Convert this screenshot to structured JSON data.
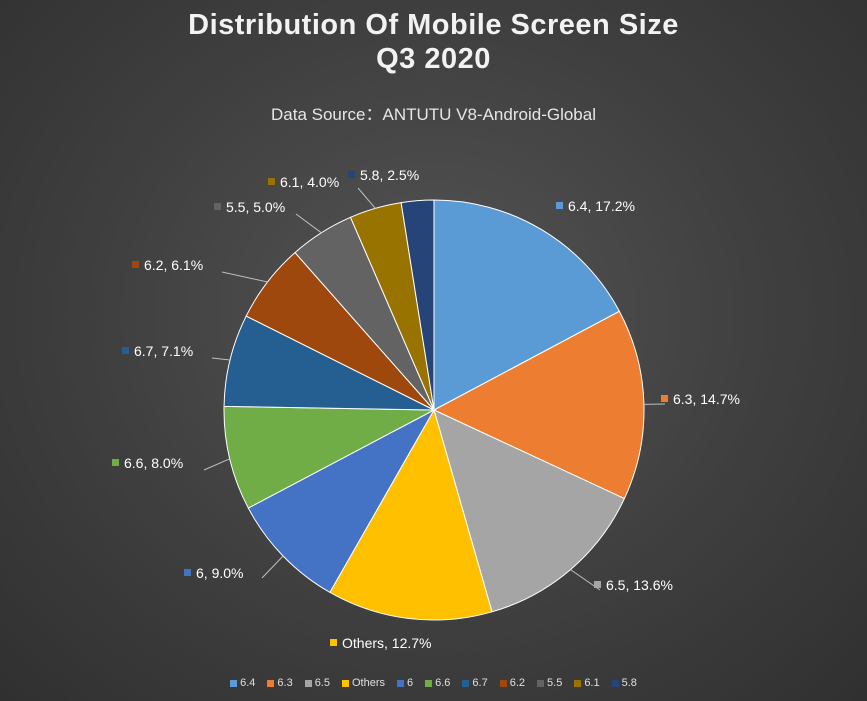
{
  "title_line1": "Distribution Of Mobile Screen Size",
  "title_line2": "Q3 2020",
  "subtitle": "Data Source：ANTUTU V8-Android-Global",
  "chart_data": {
    "type": "pie",
    "title": "Distribution Of Mobile Screen Size Q3 2020",
    "subtitle": "Data Source：ANTUTU V8-Android-Global",
    "legend_position": "bottom",
    "slices": [
      {
        "label": "6.4",
        "value": 17.2,
        "display": "6.4, 17.2%",
        "color": "#5b9bd5"
      },
      {
        "label": "6.3",
        "value": 14.7,
        "display": "6.3, 14.7%",
        "color": "#ed7d31"
      },
      {
        "label": "6.5",
        "value": 13.6,
        "display": "6.5, 13.6%",
        "color": "#a5a5a5"
      },
      {
        "label": "Others",
        "value": 12.7,
        "display": "Others, 12.7%",
        "color": "#ffc000"
      },
      {
        "label": "6",
        "value": 9.0,
        "display": "6, 9.0%",
        "color": "#4472c4"
      },
      {
        "label": "6.6",
        "value": 8.0,
        "display": "6.6, 8.0%",
        "color": "#70ad47"
      },
      {
        "label": "6.7",
        "value": 7.1,
        "display": "6.7, 7.1%",
        "color": "#255e91"
      },
      {
        "label": "6.2",
        "value": 6.1,
        "display": "6.2, 6.1%",
        "color": "#9e480e"
      },
      {
        "label": "5.5",
        "value": 5.0,
        "display": "5.5, 5.0%",
        "color": "#636363"
      },
      {
        "label": "6.1",
        "value": 4.0,
        "display": "6.1, 4.0%",
        "color": "#997300"
      },
      {
        "label": "5.8",
        "value": 2.5,
        "display": "5.8, 2.5%",
        "color": "#264478"
      }
    ]
  }
}
